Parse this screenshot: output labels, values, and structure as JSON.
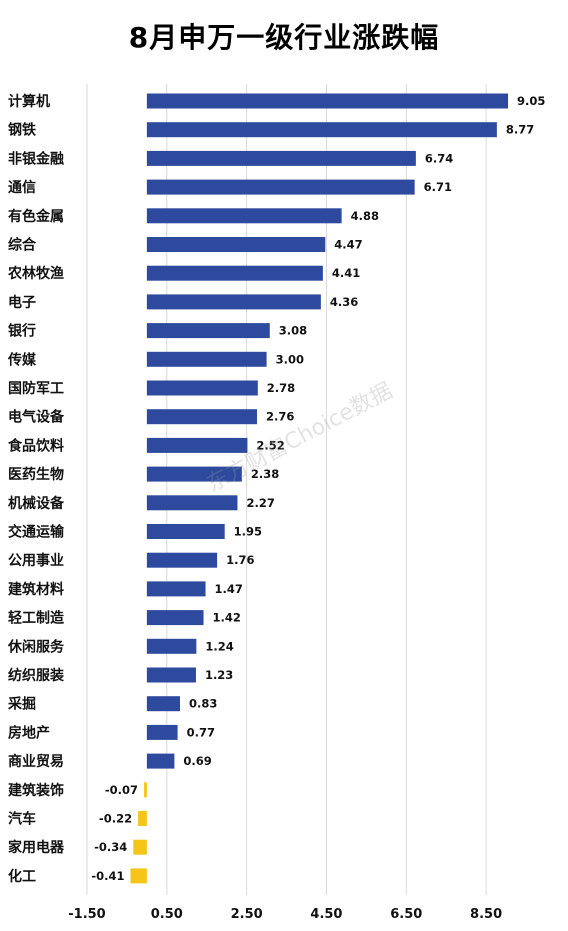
{
  "watermark": "东方财富Choice数据",
  "colors": {
    "positive": "#2E4A9E",
    "negative": "#F5C518",
    "grid": "#D9D9D9"
  },
  "chart_data": {
    "type": "bar",
    "orientation": "horizontal",
    "title": "8月申万一级行业涨跌幅",
    "xlim": [
      -1.5,
      9.5
    ],
    "xticks": [
      -1.5,
      0.5,
      2.5,
      4.5,
      6.5,
      8.5
    ],
    "xtick_labels": [
      "-1.50",
      "0.50",
      "2.50",
      "4.50",
      "6.50",
      "8.50"
    ],
    "grid": "vertical",
    "categories": [
      "计算机",
      "钢铁",
      "非银金融",
      "通信",
      "有色金属",
      "综合",
      "农林牧渔",
      "电子",
      "银行",
      "传媒",
      "国防军工",
      "电气设备",
      "食品饮料",
      "医药生物",
      "机械设备",
      "交通运输",
      "公用事业",
      "建筑材料",
      "轻工制造",
      "休闲服务",
      "纺织服装",
      "采掘",
      "房地产",
      "商业贸易",
      "建筑装饰",
      "汽车",
      "家用电器",
      "化工"
    ],
    "values": [
      9.05,
      8.77,
      6.74,
      6.71,
      4.88,
      4.47,
      4.41,
      4.36,
      3.08,
      3.0,
      2.78,
      2.76,
      2.52,
      2.38,
      2.27,
      1.95,
      1.76,
      1.47,
      1.42,
      1.24,
      1.23,
      0.83,
      0.77,
      0.69,
      -0.07,
      -0.22,
      -0.34,
      -0.41
    ],
    "value_labels": [
      "9.05",
      "8.77",
      "6.74",
      "6.71",
      "4.88",
      "4.47",
      "4.41",
      "4.36",
      "3.08",
      "3.00",
      "2.78",
      "2.76",
      "2.52",
      "2.38",
      "2.27",
      "1.95",
      "1.76",
      "1.47",
      "1.42",
      "1.24",
      "1.23",
      "0.83",
      "0.77",
      "0.69",
      "-0.07",
      "-0.22",
      "-0.34",
      "-0.41"
    ]
  }
}
